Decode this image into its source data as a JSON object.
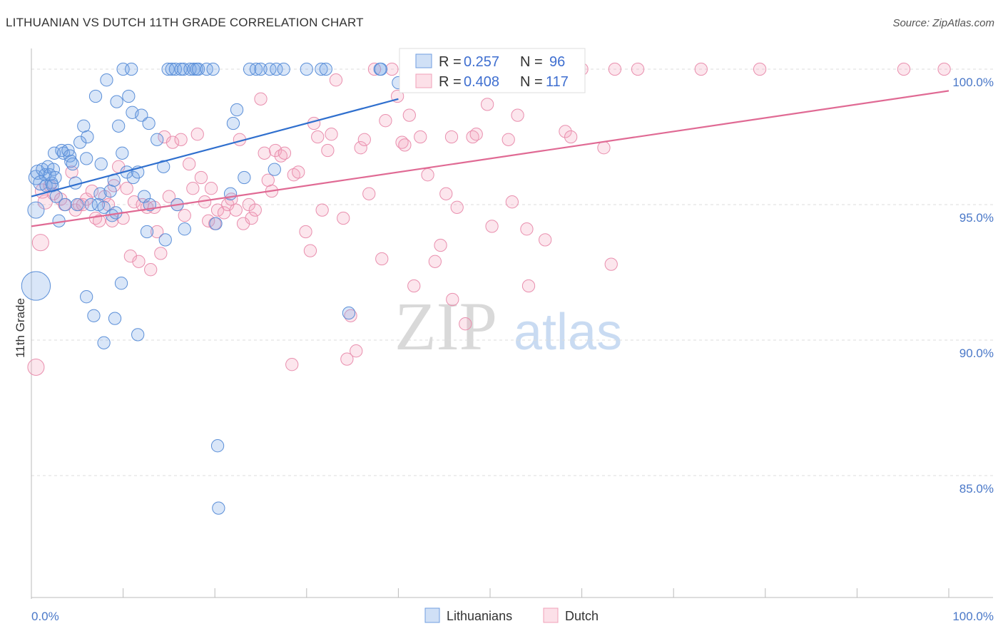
{
  "header": {
    "title": "LITHUANIAN VS DUTCH 11TH GRADE CORRELATION CHART",
    "source": "Source: ZipAtlas.com"
  },
  "watermark": {
    "zip": "ZIP",
    "atlas": "atlas"
  },
  "legend": {
    "rows": [
      {
        "r_label": "R =",
        "r_value": "0.257",
        "n_label": "N =",
        "n_value": "96",
        "color": "#6f9ee0"
      },
      {
        "r_label": "R =",
        "r_value": "0.408",
        "n_label": "N =",
        "n_value": "117",
        "color": "#f0a0b8"
      }
    ]
  },
  "bottom_legend": {
    "items": [
      "Lithuanians",
      "Dutch"
    ]
  },
  "colors": {
    "lithuanian_fill": "rgba(120,165,230,0.28)",
    "lithuanian_stroke": "#5b8fd8",
    "lithuanian_line": "#2f6fce",
    "dutch_fill": "rgba(245,165,190,0.28)",
    "dutch_stroke": "#e98fae",
    "dutch_line": "#e06a94",
    "tick_label": "#4a78c8"
  },
  "chart_data": {
    "type": "scatter",
    "title": "LITHUANIAN VS DUTCH 11TH GRADE CORRELATION CHART",
    "xlabel": "",
    "ylabel": "11th Grade",
    "xlim": [
      0,
      100
    ],
    "ylim": [
      80.5,
      100.5
    ],
    "x_tick_labels": [
      "0.0%",
      "100.0%"
    ],
    "y_ticks": [
      85,
      90,
      95,
      100
    ],
    "y_tick_labels": [
      "85.0%",
      "90.0%",
      "95.0%",
      "100.0%"
    ],
    "grid": true,
    "legend_position": "top-center",
    "series": [
      {
        "name": "Lithuanians",
        "r": 0.257,
        "n": 96,
        "trend": {
          "x": [
            0,
            40
          ],
          "y": [
            95.3,
            98.9
          ]
        },
        "points": [
          [
            0.5,
            92.0,
            28
          ],
          [
            0.5,
            94.8,
            16
          ],
          [
            0.5,
            96.0,
            14
          ],
          [
            0.7,
            96.2,
            14
          ],
          [
            1.0,
            95.8,
            14
          ],
          [
            1.2,
            96.3,
            12
          ],
          [
            1.5,
            96.1,
            12
          ],
          [
            1.6,
            95.7,
            12
          ],
          [
            1.8,
            96.4,
            12
          ],
          [
            2.0,
            96.1,
            12
          ],
          [
            2.2,
            95.8,
            12
          ],
          [
            2.3,
            95.7,
            12
          ],
          [
            2.4,
            96.3,
            12
          ],
          [
            2.5,
            96.9,
            12
          ],
          [
            2.6,
            96.0,
            12
          ],
          [
            2.7,
            95.3,
            12
          ],
          [
            3.0,
            94.4,
            12
          ],
          [
            3.3,
            97.0,
            12
          ],
          [
            3.5,
            96.9,
            12
          ],
          [
            3.7,
            95.0,
            12
          ],
          [
            4.0,
            97.0,
            12
          ],
          [
            4.2,
            96.8,
            12
          ],
          [
            4.3,
            96.6,
            12
          ],
          [
            4.5,
            96.5,
            12
          ],
          [
            4.8,
            95.8,
            12
          ],
          [
            5.0,
            95.0,
            12
          ],
          [
            5.3,
            97.3,
            12
          ],
          [
            5.7,
            97.9,
            12
          ],
          [
            6.0,
            96.7,
            12
          ],
          [
            6.1,
            97.5,
            12
          ],
          [
            6.5,
            95.0,
            12
          ],
          [
            7.0,
            99.0,
            12
          ],
          [
            7.3,
            95.0,
            12
          ],
          [
            7.5,
            95.4,
            12
          ],
          [
            7.6,
            96.5,
            12
          ],
          [
            7.9,
            94.9,
            12
          ],
          [
            8.2,
            99.6,
            12
          ],
          [
            8.6,
            95.5,
            12
          ],
          [
            8.8,
            94.6,
            12
          ],
          [
            9.0,
            95.9,
            12
          ],
          [
            9.2,
            94.7,
            12
          ],
          [
            9.3,
            98.8,
            12
          ],
          [
            9.5,
            97.9,
            12
          ],
          [
            9.8,
            92.1,
            12
          ],
          [
            9.9,
            96.9,
            12
          ],
          [
            10.0,
            100.0,
            12
          ],
          [
            10.4,
            96.2,
            12
          ],
          [
            10.6,
            99.0,
            12
          ],
          [
            10.9,
            100.0,
            12
          ],
          [
            11.0,
            98.4,
            12
          ],
          [
            11.1,
            96.0,
            12
          ],
          [
            11.6,
            96.2,
            12
          ],
          [
            11.6,
            90.2,
            12
          ],
          [
            12.0,
            98.3,
            12
          ],
          [
            12.3,
            95.3,
            12
          ],
          [
            12.6,
            94.0,
            12
          ],
          [
            12.8,
            98.0,
            12
          ],
          [
            12.9,
            95.0,
            12
          ],
          [
            13.7,
            97.4,
            12
          ],
          [
            14.6,
            93.7,
            12
          ],
          [
            14.4,
            96.4,
            12
          ],
          [
            14.9,
            100.0,
            12
          ],
          [
            15.3,
            100.0,
            12
          ],
          [
            15.7,
            100.0,
            12
          ],
          [
            15.9,
            95.0,
            12
          ],
          [
            16.3,
            100.0,
            12
          ],
          [
            16.6,
            100.0,
            12
          ],
          [
            16.7,
            94.1,
            12
          ],
          [
            17.3,
            100.0,
            12
          ],
          [
            17.7,
            100.0,
            12
          ],
          [
            18.0,
            100.0,
            12
          ],
          [
            18.2,
            100.0,
            12
          ],
          [
            19.1,
            100.0,
            12
          ],
          [
            19.8,
            100.0,
            12
          ],
          [
            20.1,
            94.3,
            12
          ],
          [
            20.3,
            86.1,
            12
          ],
          [
            20.4,
            83.8,
            12
          ],
          [
            21.7,
            95.4,
            12
          ],
          [
            22.0,
            98.0,
            12
          ],
          [
            22.4,
            98.5,
            12
          ],
          [
            23.2,
            96.0,
            12
          ],
          [
            23.8,
            100.0,
            12
          ],
          [
            24.5,
            100.0,
            12
          ],
          [
            25.0,
            100.0,
            12
          ],
          [
            26.0,
            100.0,
            12
          ],
          [
            26.7,
            100.0,
            12
          ],
          [
            26.5,
            96.3,
            12
          ],
          [
            27.5,
            100.0,
            12
          ],
          [
            30.0,
            100.0,
            12
          ],
          [
            31.6,
            100.0,
            12
          ],
          [
            32.1,
            100.0,
            12
          ],
          [
            34.6,
            91.0,
            12
          ],
          [
            38.0,
            100.0,
            12
          ],
          [
            38.1,
            100.0,
            12
          ],
          [
            40.0,
            99.5,
            12
          ],
          [
            6.0,
            91.6,
            12
          ],
          [
            6.8,
            90.9,
            12
          ],
          [
            7.9,
            89.9,
            12
          ],
          [
            9.1,
            90.8,
            12
          ]
        ]
      },
      {
        "name": "Dutch",
        "r": 0.408,
        "n": 117,
        "trend": {
          "x": [
            0,
            100
          ],
          "y": [
            94.2,
            99.2
          ]
        },
        "points": [
          [
            0.5,
            89.0,
            16
          ],
          [
            1.0,
            93.6,
            16
          ],
          [
            1.2,
            95.5,
            14
          ],
          [
            1.5,
            95.1,
            14
          ],
          [
            2.0,
            95.7,
            12
          ],
          [
            2.4,
            95.4,
            12
          ],
          [
            3.2,
            95.2,
            12
          ],
          [
            3.6,
            95.0,
            12
          ],
          [
            4.4,
            96.2,
            12
          ],
          [
            4.8,
            94.8,
            12
          ],
          [
            5.2,
            95.0,
            12
          ],
          [
            5.6,
            95.0,
            12
          ],
          [
            6.0,
            95.2,
            12
          ],
          [
            6.6,
            95.5,
            12
          ],
          [
            7.0,
            94.5,
            12
          ],
          [
            7.4,
            94.4,
            12
          ],
          [
            8.0,
            95.3,
            12
          ],
          [
            8.4,
            95.0,
            12
          ],
          [
            8.8,
            94.4,
            12
          ],
          [
            9.0,
            95.7,
            12
          ],
          [
            9.5,
            96.4,
            12
          ],
          [
            10.0,
            94.5,
            12
          ],
          [
            10.4,
            95.6,
            12
          ],
          [
            10.8,
            93.1,
            12
          ],
          [
            11.2,
            95.1,
            12
          ],
          [
            11.7,
            92.9,
            12
          ],
          [
            12.1,
            95.0,
            12
          ],
          [
            12.6,
            94.9,
            12
          ],
          [
            13.0,
            92.6,
            12
          ],
          [
            13.4,
            94.9,
            12
          ],
          [
            13.7,
            94.0,
            12
          ],
          [
            14.1,
            93.2,
            12
          ],
          [
            14.5,
            97.5,
            12
          ],
          [
            15.0,
            95.3,
            12
          ],
          [
            15.4,
            97.3,
            12
          ],
          [
            15.9,
            95.0,
            12
          ],
          [
            16.3,
            97.4,
            12
          ],
          [
            16.7,
            94.6,
            12
          ],
          [
            17.2,
            96.5,
            12
          ],
          [
            17.6,
            95.6,
            12
          ],
          [
            18.1,
            97.6,
            12
          ],
          [
            18.5,
            96.0,
            12
          ],
          [
            18.9,
            95.1,
            12
          ],
          [
            19.3,
            94.4,
            12
          ],
          [
            19.6,
            95.6,
            12
          ],
          [
            20.0,
            94.3,
            12
          ],
          [
            20.3,
            94.8,
            12
          ],
          [
            21.0,
            94.7,
            12
          ],
          [
            21.4,
            95.0,
            12
          ],
          [
            21.8,
            95.2,
            12
          ],
          [
            22.3,
            94.8,
            12
          ],
          [
            22.7,
            97.4,
            12
          ],
          [
            23.1,
            94.3,
            12
          ],
          [
            23.7,
            95.0,
            12
          ],
          [
            24.0,
            94.5,
            12
          ],
          [
            24.4,
            94.8,
            12
          ],
          [
            25.0,
            98.9,
            12
          ],
          [
            25.4,
            96.9,
            12
          ],
          [
            25.8,
            95.9,
            12
          ],
          [
            26.2,
            95.5,
            12
          ],
          [
            26.6,
            97.0,
            12
          ],
          [
            27.2,
            96.8,
            12
          ],
          [
            27.6,
            96.9,
            12
          ],
          [
            28.4,
            89.1,
            12
          ],
          [
            28.6,
            96.1,
            12
          ],
          [
            29.1,
            96.2,
            12
          ],
          [
            29.9,
            94.0,
            12
          ],
          [
            30.4,
            93.3,
            12
          ],
          [
            30.8,
            98.0,
            12
          ],
          [
            31.2,
            97.5,
            12
          ],
          [
            31.7,
            94.8,
            12
          ],
          [
            32.3,
            97.0,
            12
          ],
          [
            32.7,
            97.6,
            12
          ],
          [
            33.2,
            99.6,
            12
          ],
          [
            34.0,
            94.5,
            12
          ],
          [
            34.4,
            89.3,
            12
          ],
          [
            34.8,
            90.9,
            12
          ],
          [
            35.4,
            89.6,
            12
          ],
          [
            35.9,
            97.1,
            12
          ],
          [
            36.3,
            97.4,
            12
          ],
          [
            36.8,
            95.4,
            12
          ],
          [
            37.4,
            100.0,
            12
          ],
          [
            38.2,
            93.0,
            12
          ],
          [
            38.6,
            98.1,
            12
          ],
          [
            39.3,
            100.0,
            12
          ],
          [
            39.9,
            99.0,
            12
          ],
          [
            40.4,
            97.3,
            12
          ],
          [
            40.7,
            97.2,
            12
          ],
          [
            41.2,
            98.3,
            12
          ],
          [
            41.7,
            92.0,
            12
          ],
          [
            42.4,
            97.5,
            12
          ],
          [
            43.2,
            96.1,
            12
          ],
          [
            44.2,
            100.0,
            12
          ],
          [
            44.6,
            93.5,
            12
          ],
          [
            44.0,
            92.9,
            12
          ],
          [
            45.2,
            95.4,
            12
          ],
          [
            45.8,
            97.5,
            12
          ],
          [
            45.9,
            91.5,
            12
          ],
          [
            46.4,
            94.9,
            12
          ],
          [
            47.3,
            90.6,
            12
          ],
          [
            48.1,
            97.5,
            12
          ],
          [
            48.5,
            97.6,
            12
          ],
          [
            48.8,
            100.0,
            12
          ],
          [
            49.7,
            98.7,
            12
          ],
          [
            50.2,
            94.2,
            12
          ],
          [
            52.0,
            97.4,
            12
          ],
          [
            52.4,
            95.1,
            12
          ],
          [
            53.0,
            98.3,
            12
          ],
          [
            54.0,
            94.1,
            12
          ],
          [
            54.2,
            92.0,
            12
          ],
          [
            56.0,
            93.7,
            12
          ],
          [
            58.2,
            97.7,
            12
          ],
          [
            58.8,
            97.5,
            12
          ],
          [
            60.0,
            100.0,
            12
          ],
          [
            62.4,
            97.1,
            12
          ],
          [
            63.2,
            92.8,
            12
          ],
          [
            63.6,
            100.0,
            12
          ],
          [
            66.1,
            100.0,
            12
          ],
          [
            73.0,
            100.0,
            12
          ],
          [
            79.4,
            100.0,
            12
          ],
          [
            95.1,
            100.0,
            12
          ],
          [
            99.5,
            100.0,
            12
          ]
        ]
      }
    ]
  }
}
